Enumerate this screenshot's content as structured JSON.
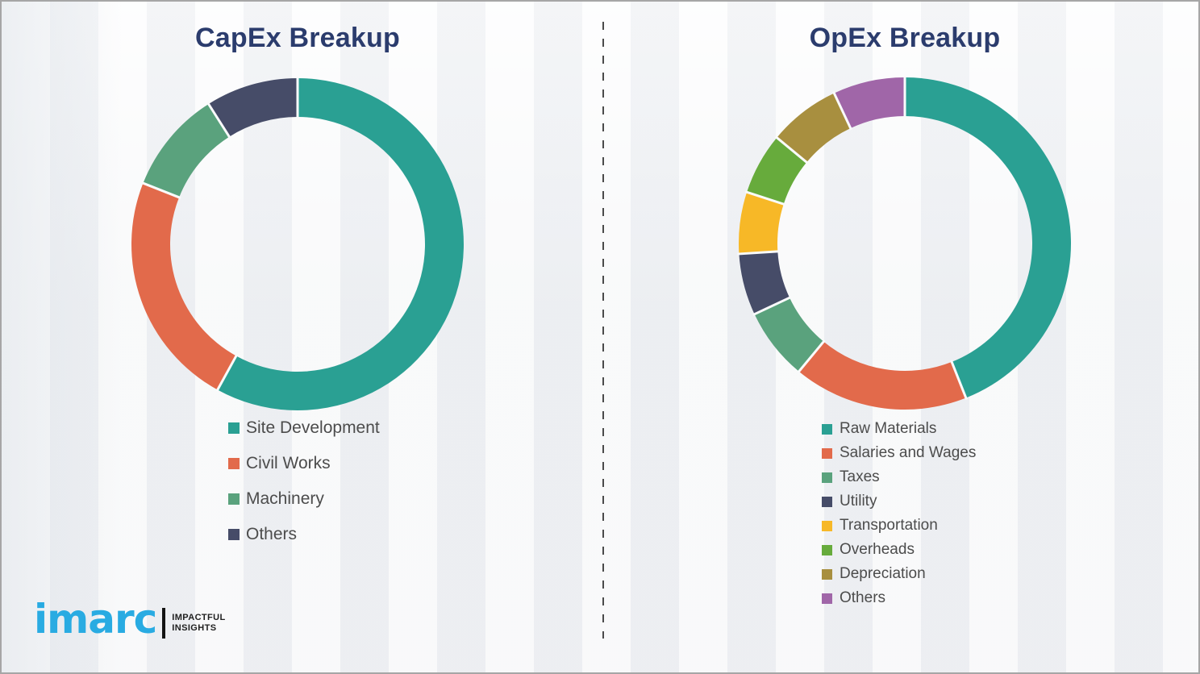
{
  "page": {
    "background_color": "#f3f4f6",
    "border_color": "#a6a6a6",
    "divider_color": "#4a4a4a",
    "title_color": "#2b3c6d",
    "legend_text_color": "#4c4c4c",
    "segment_gap_color": "#fafbfc"
  },
  "logo": {
    "brand": "imarc",
    "brand_color": "#29abe2",
    "tagline_line1": "IMPACTFUL",
    "tagline_line2": "INSIGHTS",
    "tagline_color": "#1f1f1f"
  },
  "chart_data": [
    {
      "type": "pie",
      "variant": "donut",
      "title": "CapEx Breakup",
      "title_color": "#2b3c6d",
      "categories": [
        "Site Development",
        "Civil Works",
        "Machinery",
        "Others"
      ],
      "values": [
        58,
        23,
        10,
        9
      ],
      "colors": [
        "#2aa093",
        "#e26a4b",
        "#5aa27d",
        "#464c68"
      ],
      "note": "values are percent shares estimated from arc angles; no numeric labels shown",
      "start_angle_deg": 0,
      "direction": "clockwise",
      "legend_position": "below-left"
    },
    {
      "type": "pie",
      "variant": "donut",
      "title": "OpEx Breakup",
      "title_color": "#2b3c6d",
      "categories": [
        "Raw Materials",
        "Salaries and Wages",
        "Taxes",
        "Utility",
        "Transportation",
        "Overheads",
        "Depreciation",
        "Others"
      ],
      "values": [
        44,
        17,
        7,
        6,
        6,
        6,
        7,
        7
      ],
      "colors": [
        "#2aa093",
        "#e26a4b",
        "#5aa27d",
        "#464c68",
        "#f7b827",
        "#67ab3c",
        "#a88f3f",
        "#a066a8"
      ],
      "note": "values are percent shares estimated from arc angles; no numeric labels shown",
      "start_angle_deg": 0,
      "direction": "clockwise",
      "legend_position": "below-left"
    }
  ]
}
